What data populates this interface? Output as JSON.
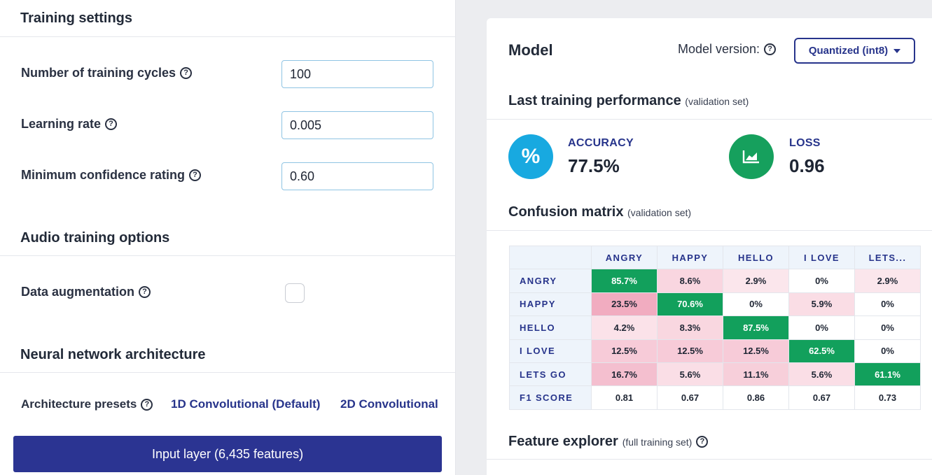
{
  "left": {
    "training_settings_title": "Training settings",
    "fields": [
      {
        "label": "Number of training cycles",
        "value": "100"
      },
      {
        "label": "Learning rate",
        "value": "0.005"
      },
      {
        "label": "Minimum confidence rating",
        "value": "0.60"
      }
    ],
    "audio_title": "Audio training options",
    "data_augmentation_label": "Data augmentation",
    "data_augmentation_checked": false,
    "nn_title": "Neural network architecture",
    "presets_label": "Architecture presets",
    "preset_1d": "1D Convolutional (Default)",
    "preset_2d": "2D Convolutional",
    "input_layer_label": "Input layer (6,435 features)"
  },
  "right": {
    "model_title": "Model",
    "version_label": "Model version:",
    "version_value": "Quantized (int8)",
    "last_perf_title": "Last training performance",
    "last_perf_sub": "(validation set)",
    "accuracy": {
      "label": "ACCURACY",
      "value": "77.5%",
      "icon": "percent-icon",
      "color": "#18a9e0"
    },
    "loss": {
      "label": "LOSS",
      "value": "0.96",
      "icon": "chart-icon",
      "color": "#16a05d"
    },
    "cm_title": "Confusion matrix",
    "cm_sub": "(validation set)",
    "feature_title": "Feature explorer",
    "feature_sub": "(full training set)"
  },
  "confusion_matrix": {
    "columns": [
      "ANGRY",
      "HAPPY",
      "HELLO",
      "I LOVE",
      "LETS..."
    ],
    "rows": [
      {
        "label": "ANGRY",
        "cells": [
          "85.7%",
          "8.6%",
          "2.9%",
          "0%",
          "2.9%"
        ]
      },
      {
        "label": "HAPPY",
        "cells": [
          "23.5%",
          "70.6%",
          "0%",
          "5.9%",
          "0%"
        ]
      },
      {
        "label": "HELLO",
        "cells": [
          "4.2%",
          "8.3%",
          "87.5%",
          "0%",
          "0%"
        ]
      },
      {
        "label": "I LOVE",
        "cells": [
          "12.5%",
          "12.5%",
          "12.5%",
          "62.5%",
          "0%"
        ]
      },
      {
        "label": "LETS GO",
        "cells": [
          "16.7%",
          "5.6%",
          "11.1%",
          "5.6%",
          "61.1%"
        ]
      }
    ],
    "f1": {
      "label": "F1 SCORE",
      "cells": [
        "0.81",
        "0.67",
        "0.86",
        "0.67",
        "0.73"
      ]
    },
    "colors": {
      "diagonal": "#12a05c",
      "diagonal_text": "#ffffff",
      "off_max": "#f0a8bd"
    }
  }
}
